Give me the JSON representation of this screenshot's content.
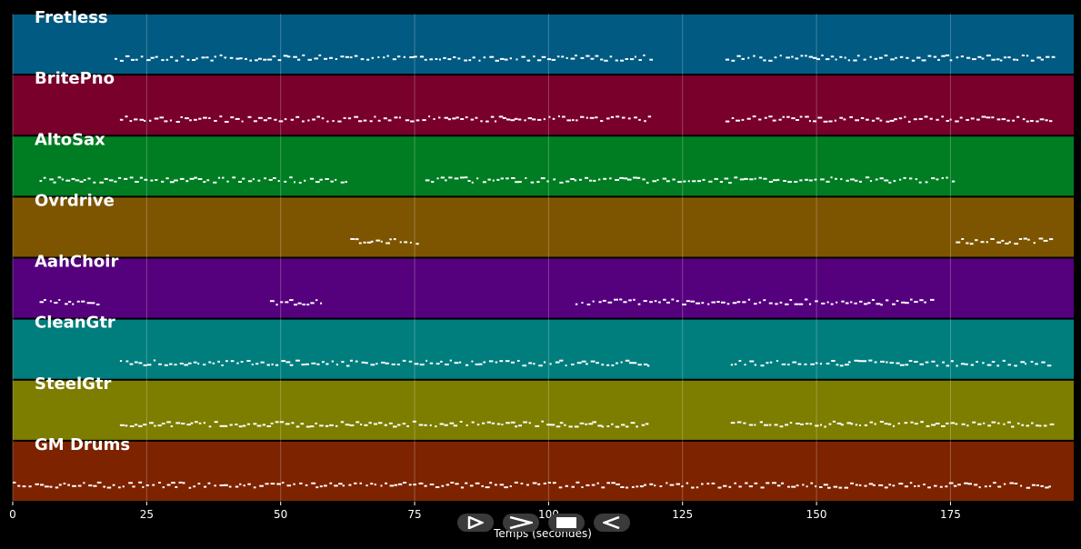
{
  "chart_data": {
    "type": "piano-roll",
    "xlabel": "Temps (secondes)",
    "xlim": [
      0,
      198
    ],
    "xticks": [
      0,
      25,
      50,
      75,
      100,
      125,
      150,
      175
    ],
    "tracks": [
      {
        "name": "Fretless",
        "color": "#005a82",
        "segments": [
          [
            19,
            119
          ],
          [
            133,
            194
          ]
        ]
      },
      {
        "name": "BritePno",
        "color": "#78002a",
        "segments": [
          [
            20,
            119
          ],
          [
            133,
            194
          ]
        ]
      },
      {
        "name": "AltoSax",
        "color": "#007d23",
        "segments": [
          [
            5,
            62
          ],
          [
            77,
            176
          ]
        ]
      },
      {
        "name": "Ovrdrive",
        "color": "#7d5500",
        "segments": [
          [
            63,
            76
          ],
          [
            176,
            194
          ]
        ]
      },
      {
        "name": "AahChoir",
        "color": "#55007d",
        "segments": [
          [
            5,
            16
          ],
          [
            48,
            58
          ],
          [
            105,
            172
          ]
        ]
      },
      {
        "name": "CleanGtr",
        "color": "#007d7d",
        "segments": [
          [
            20,
            119
          ],
          [
            134,
            194
          ]
        ]
      },
      {
        "name": "SteelGtr",
        "color": "#7d7d00",
        "segments": [
          [
            20,
            119
          ],
          [
            134,
            194
          ]
        ]
      },
      {
        "name": "GM Drums",
        "color": "#7d2300",
        "segments": [
          [
            0,
            194
          ]
        ]
      }
    ]
  },
  "controls": [
    {
      "name": "play-icon"
    },
    {
      "name": "forward-icon"
    },
    {
      "name": "stop-icon"
    },
    {
      "name": "rewind-icon"
    }
  ]
}
